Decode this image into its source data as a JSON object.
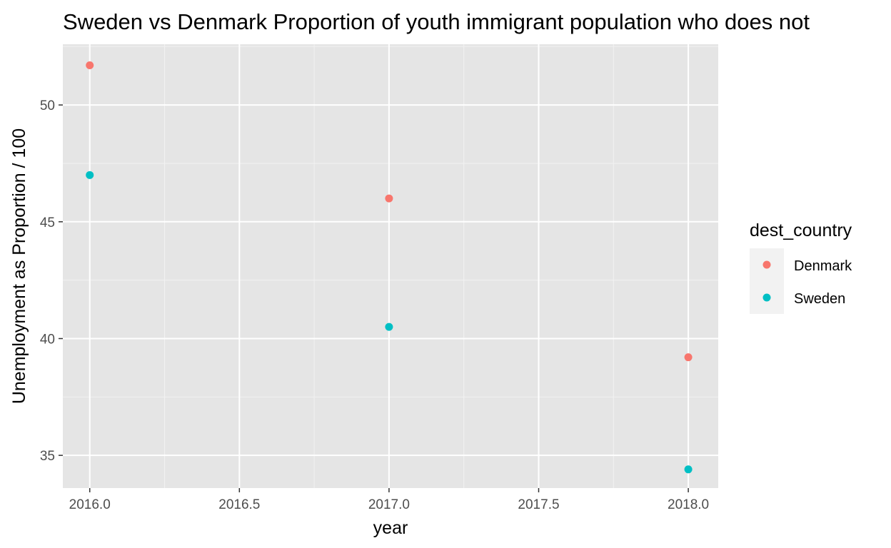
{
  "chart_data": {
    "type": "scatter",
    "title": "Sweden vs Denmark Proportion of youth immigrant population who does not",
    "xlabel": "year",
    "ylabel": "Unemployment as Proportion / 100",
    "xlim": [
      2015.91,
      2018.1
    ],
    "ylim": [
      33.6,
      52.6
    ],
    "x_ticks": [
      2016.0,
      2016.5,
      2017.0,
      2017.5,
      2018.0
    ],
    "x_tick_labels": [
      "2016.0",
      "2016.5",
      "2017.0",
      "2017.5",
      "2018.0"
    ],
    "y_ticks": [
      35,
      40,
      45,
      50
    ],
    "y_tick_labels": [
      "35",
      "40",
      "45",
      "50"
    ],
    "grid": true,
    "legend": {
      "title": "dest_country",
      "placement": "right"
    },
    "series": [
      {
        "name": "Denmark",
        "color": "#F8766D",
        "points": [
          {
            "x": 2016,
            "y": 51.7
          },
          {
            "x": 2017,
            "y": 46.0
          },
          {
            "x": 2018,
            "y": 39.2
          }
        ]
      },
      {
        "name": "Sweden",
        "color": "#00BFC4",
        "points": [
          {
            "x": 2016,
            "y": 47.0
          },
          {
            "x": 2017,
            "y": 40.5
          },
          {
            "x": 2018,
            "y": 34.4
          }
        ]
      }
    ]
  }
}
